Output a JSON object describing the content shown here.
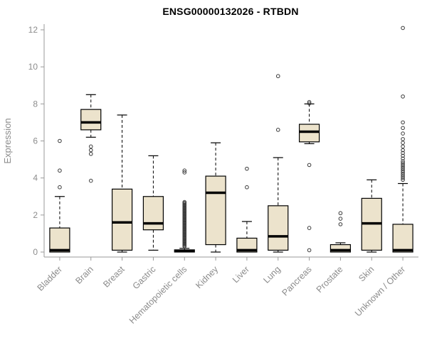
{
  "chart_data": {
    "type": "boxplot",
    "title": "ENSG00000132026 - RTBDN",
    "ylabel": "Expression",
    "xlabel": "",
    "ylim": [
      0,
      12
    ],
    "yticks": [
      0,
      2,
      4,
      6,
      8,
      10,
      12
    ],
    "grid": false,
    "legend": "none",
    "categories": [
      "Bladder",
      "Brain",
      "Breast",
      "Gastric",
      "Hematopoietic cells",
      "Kidney",
      "Liver",
      "Lung",
      "Pancreas",
      "Prostate",
      "Skin",
      "Unknown / Other"
    ],
    "series": [
      {
        "category": "Bladder",
        "q1": 0.0,
        "median": 0.1,
        "q3": 1.3,
        "whisker_low": 0.0,
        "whisker_high": 3.0,
        "outliers": [
          3.5,
          4.4,
          6.0
        ]
      },
      {
        "category": "Brain",
        "q1": 6.6,
        "median": 7.0,
        "q3": 7.7,
        "whisker_low": 6.2,
        "whisker_high": 8.5,
        "outliers": [
          5.7,
          5.5,
          5.3,
          3.85
        ]
      },
      {
        "category": "Breast",
        "q1": 0.1,
        "median": 1.6,
        "q3": 3.4,
        "whisker_low": 0.0,
        "whisker_high": 7.4,
        "outliers": []
      },
      {
        "category": "Gastric",
        "q1": 1.2,
        "median": 1.55,
        "q3": 3.0,
        "whisker_low": 0.1,
        "whisker_high": 5.2,
        "outliers": []
      },
      {
        "category": "Hematopoietic cells",
        "q1": 0.0,
        "median": 0.05,
        "q3": 0.12,
        "whisker_low": 0.0,
        "whisker_high": 0.2,
        "outliers": [
          4.4,
          4.3,
          2.7,
          2.65,
          2.6,
          2.55,
          2.5,
          2.45,
          2.4,
          2.35,
          2.3,
          2.25,
          2.2,
          2.15,
          2.1,
          2.05,
          2.0,
          1.95,
          1.9,
          1.85,
          1.8,
          1.75,
          1.7,
          1.65,
          1.6,
          1.55,
          1.5,
          1.45,
          1.4,
          1.35,
          1.3,
          1.25,
          1.2,
          1.15,
          1.1,
          1.05,
          1.0,
          0.95,
          0.9,
          0.85,
          0.8,
          0.75,
          0.7,
          0.65,
          0.6,
          0.55,
          0.5,
          0.45,
          0.4,
          0.35,
          0.3
        ]
      },
      {
        "category": "Kidney",
        "q1": 0.4,
        "median": 3.2,
        "q3": 4.1,
        "whisker_low": 0.0,
        "whisker_high": 5.9,
        "outliers": []
      },
      {
        "category": "Liver",
        "q1": 0.0,
        "median": 0.1,
        "q3": 0.75,
        "whisker_low": 0.0,
        "whisker_high": 1.65,
        "outliers": [
          3.5,
          4.5
        ]
      },
      {
        "category": "Lung",
        "q1": 0.1,
        "median": 0.85,
        "q3": 2.5,
        "whisker_low": 0.0,
        "whisker_high": 5.1,
        "outliers": [
          6.6,
          9.5
        ]
      },
      {
        "category": "Pancreas",
        "q1": 5.95,
        "median": 6.5,
        "q3": 6.9,
        "whisker_low": 5.85,
        "whisker_high": 8.0,
        "outliers": [
          8.1,
          8.02,
          4.7,
          1.3,
          0.1
        ]
      },
      {
        "category": "Prostate",
        "q1": 0.0,
        "median": 0.1,
        "q3": 0.4,
        "whisker_low": 0.0,
        "whisker_high": 0.5,
        "outliers": [
          2.1,
          1.8,
          1.5
        ]
      },
      {
        "category": "Skin",
        "q1": 0.1,
        "median": 1.55,
        "q3": 2.9,
        "whisker_low": 0.0,
        "whisker_high": 3.9,
        "outliers": []
      },
      {
        "category": "Unknown / Other",
        "q1": 0.0,
        "median": 0.1,
        "q3": 1.5,
        "whisker_low": 0.0,
        "whisker_high": 3.7,
        "outliers": [
          12.1,
          8.4,
          7.0,
          6.7,
          6.4,
          6.1,
          5.9,
          5.7,
          5.5,
          5.35,
          5.2,
          5.05,
          4.9,
          4.8,
          4.7,
          4.6,
          4.5,
          4.4,
          4.3,
          4.2,
          4.1,
          4.0,
          3.9
        ]
      }
    ],
    "colors": {
      "box_fill": "#ece3cc",
      "box_border": "#000000",
      "median": "#000000",
      "whisker": "#000000",
      "outlier": "#3a3a3a",
      "axis": "#9a9a9a",
      "axis_text": "#8c8c8c",
      "title": "#000000",
      "background": "#ffffff"
    }
  }
}
